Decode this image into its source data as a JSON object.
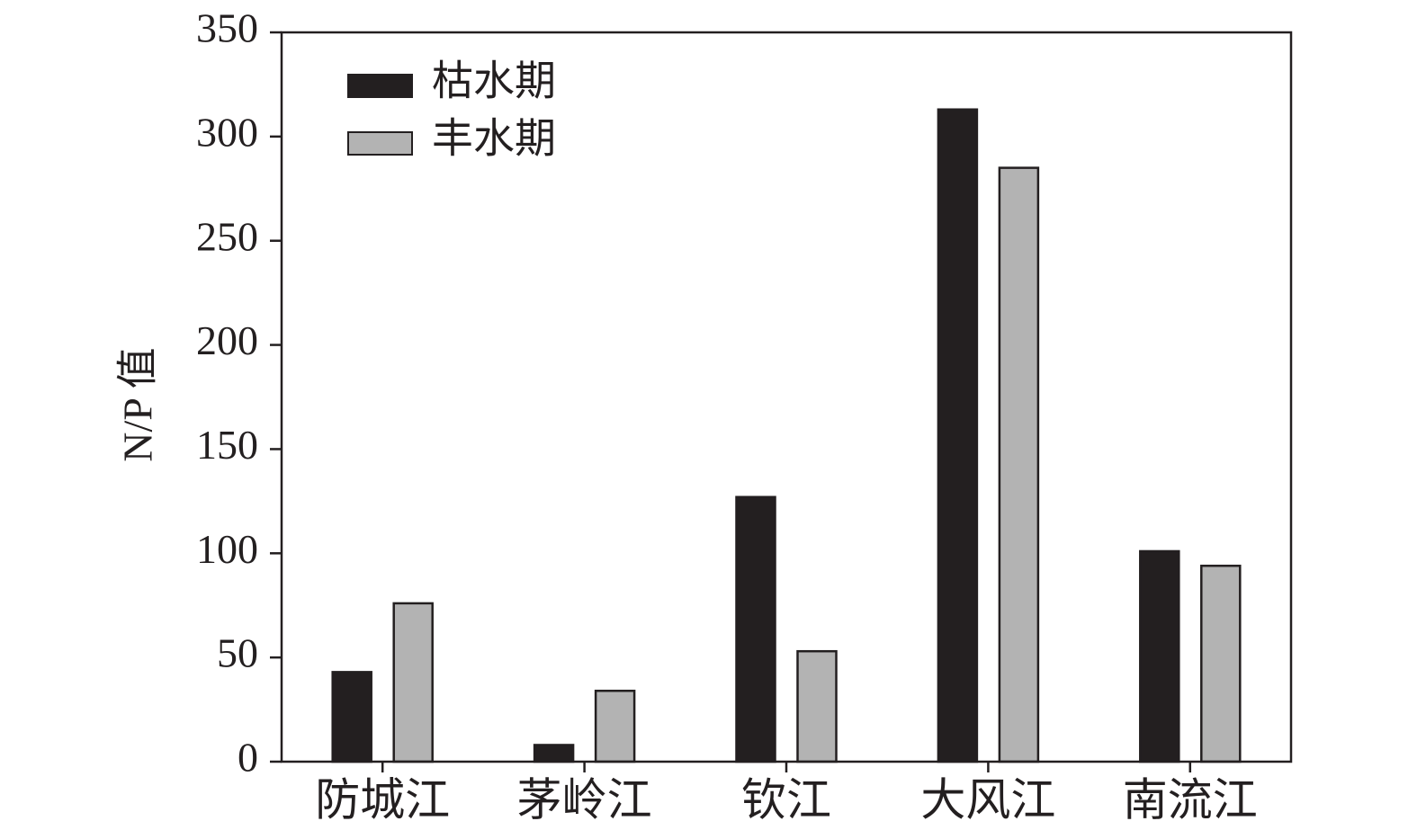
{
  "chart_data": {
    "type": "bar",
    "y_label": "N/P 值",
    "categories": [
      "防城江",
      "茅岭江",
      "钦江",
      "大风江",
      "南流江"
    ],
    "series": [
      {
        "name": "枯水期",
        "color": "#231f20",
        "values": [
          43,
          8,
          127,
          313,
          101
        ]
      },
      {
        "name": "丰水期",
        "color": "#b3b3b3",
        "values": [
          76,
          34,
          53,
          285,
          94
        ]
      }
    ],
    "ylim": [
      0,
      350
    ],
    "yticks": [
      0,
      50,
      100,
      150,
      200,
      250,
      300,
      350
    ],
    "legend": "upper-left"
  }
}
